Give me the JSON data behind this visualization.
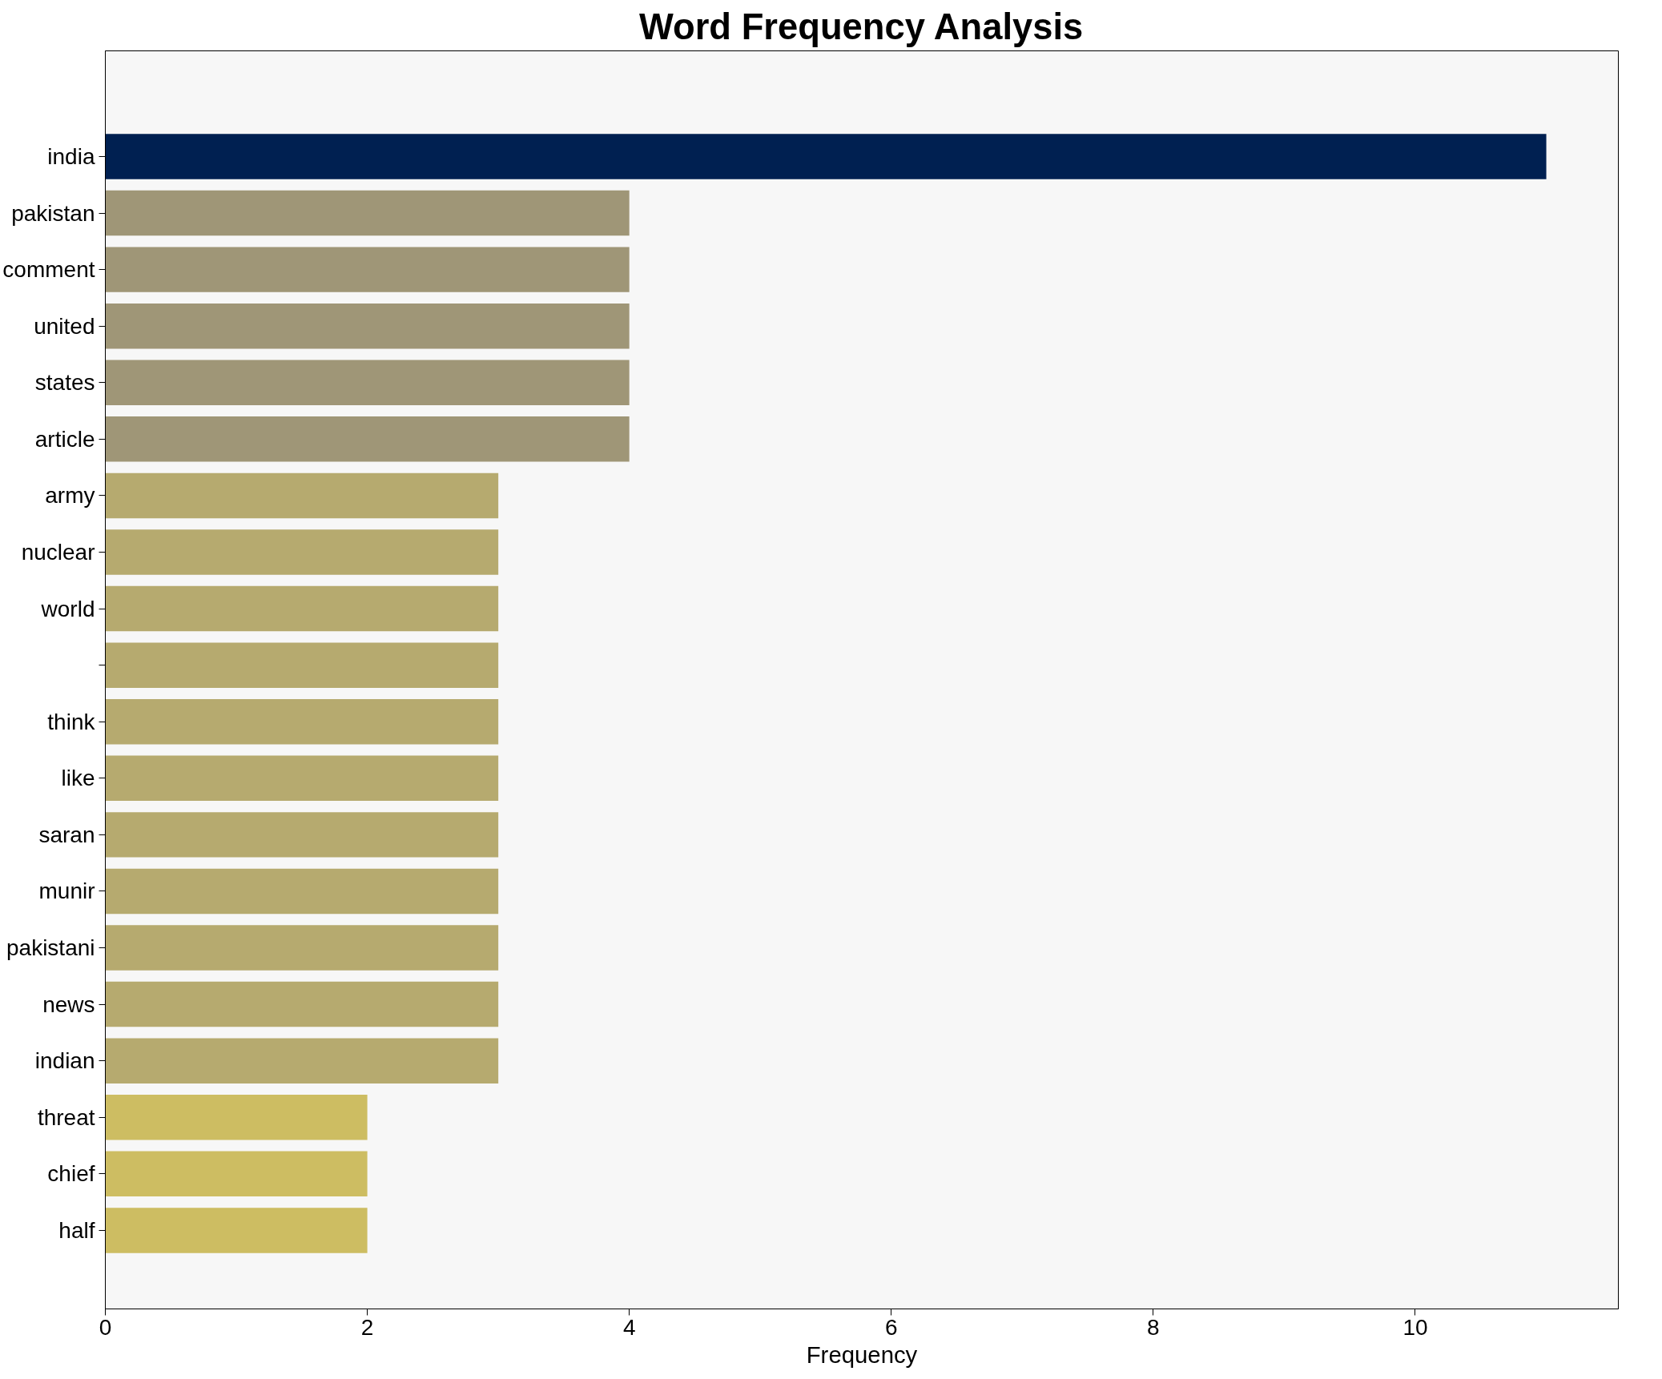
{
  "chart_data": {
    "type": "bar",
    "orientation": "horizontal",
    "title": "Word Frequency Analysis",
    "xlabel": "Frequency",
    "categories": [
      "india",
      "pakistan",
      "comment",
      "united",
      "states",
      "article",
      "army",
      "nuclear",
      "world",
      null,
      "think",
      "like",
      "saran",
      "munir",
      "pakistani",
      "news",
      "indian",
      "threat",
      "chief",
      "half"
    ],
    "values": [
      11,
      4,
      4,
      4,
      4,
      4,
      3,
      3,
      3,
      3,
      3,
      3,
      3,
      3,
      3,
      3,
      3,
      2,
      2,
      2
    ],
    "colors": [
      "#002051",
      "#9f9677",
      "#9f9677",
      "#9f9677",
      "#9f9677",
      "#9f9677",
      "#b6aa6f",
      "#b6aa6f",
      "#b6aa6f",
      "#b6aa6f",
      "#b6aa6f",
      "#b6aa6f",
      "#b6aa6f",
      "#b6aa6f",
      "#b6aa6f",
      "#b6aa6f",
      "#b6aa6f",
      "#cdbd62",
      "#cdbd62",
      "#cdbd62"
    ],
    "xlim": [
      0,
      11.55
    ],
    "xticks": [
      0,
      2,
      4,
      6,
      8,
      10
    ],
    "grid": false
  }
}
